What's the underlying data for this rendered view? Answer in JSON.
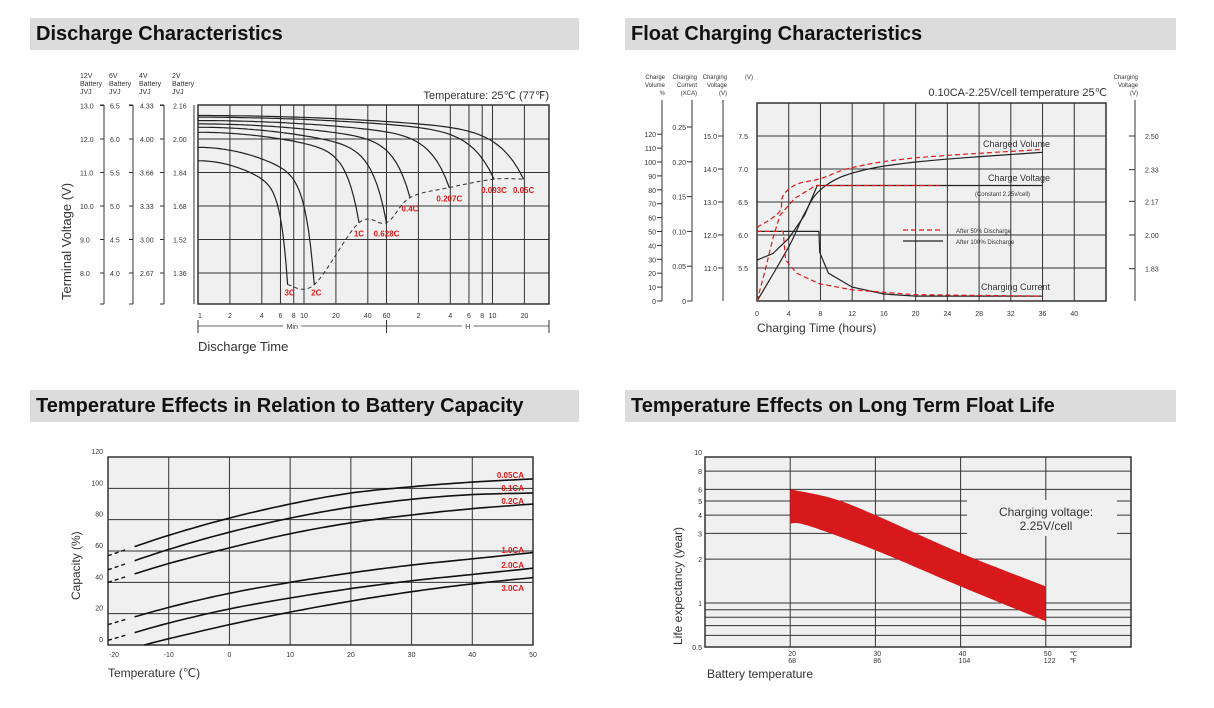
{
  "colors": {
    "grid_bg": "#f0f0f0",
    "grid_line": "#333333",
    "red": "#e01b1b",
    "band": "#d7191c",
    "header_bg": "#dcdcdc"
  },
  "chart_data": [
    {
      "type": "line",
      "title": "Discharge Characteristics",
      "annotation": "Temperature: 25℃ (77℉)",
      "xlabel": "Discharge Time",
      "ylabel": "Terminal Voltage (V)",
      "x_scale": "log",
      "x_groups": [
        {
          "label": "Min",
          "ticks": [
            "1",
            "2",
            "4",
            "6",
            "8",
            "10",
            "20",
            "40",
            "60"
          ],
          "minutes": [
            1,
            2,
            4,
            6,
            8,
            10,
            20,
            40,
            60
          ]
        },
        {
          "label": "H",
          "ticks": [
            "2",
            "4",
            "6",
            "8",
            "10",
            "20"
          ],
          "minutes": [
            120,
            240,
            360,
            480,
            600,
            1200
          ]
        }
      ],
      "voltage_axes": [
        {
          "header": [
            "12V",
            "Battery",
            "JVJ"
          ],
          "ticks": [
            "13.0",
            "12.0",
            "11.0",
            "10.0",
            "9.0",
            "8.0"
          ]
        },
        {
          "header": [
            "6V",
            "Battery",
            "JVJ"
          ],
          "ticks": [
            "6.5",
            "6.0",
            "5.5",
            "5.0",
            "4.5",
            "4.0"
          ]
        },
        {
          "header": [
            "4V",
            "Battery",
            "JVJ"
          ],
          "ticks": [
            "4.33",
            "4.00",
            "3.66",
            "3.33",
            "3.00",
            "2.67"
          ]
        },
        {
          "header": [
            "2V",
            "Battery",
            " JVJ"
          ],
          "ticks": [
            "2.16",
            "2.00",
            "1.84",
            "1.68",
            "1.52",
            "1.36"
          ]
        }
      ],
      "y_ticks_12v": [
        13,
        12,
        11,
        10,
        9,
        8
      ],
      "series": [
        {
          "name": "3C",
          "start_v": 11.5,
          "end_min": 7,
          "end_v": 7.8
        },
        {
          "name": "2C",
          "start_v": 11.9,
          "end_min": 12.5,
          "end_v": 7.8
        },
        {
          "name": "1C",
          "start_v": 12.35,
          "end_min": 33,
          "end_v": 9.65
        },
        {
          "name": "0.628C",
          "start_v": 12.5,
          "end_min": 60,
          "end_v": 9.65
        },
        {
          "name": "0.4C",
          "start_v": 12.6,
          "end_min": 100,
          "end_v": 10.4
        },
        {
          "name": "0.207C",
          "start_v": 12.7,
          "end_min": 235,
          "end_v": 10.7
        },
        {
          "name": "0.093C",
          "start_v": 12.8,
          "end_min": 620,
          "end_v": 10.95
        },
        {
          "name": "0.05C",
          "start_v": 12.85,
          "end_min": 1180,
          "end_v": 10.95
        }
      ],
      "cutoff_line": "dashed"
    },
    {
      "type": "line",
      "title": "Float Charging Characteristics",
      "annotation": "0.10CA-2.25V/cell  temperature 25℃",
      "xlabel": "Charging Time (hours)",
      "xlim": [
        0,
        44
      ],
      "x_ticks": [
        0,
        4,
        8,
        12,
        16,
        20,
        24,
        28,
        32,
        36,
        40
      ],
      "axes": {
        "charge_volume": {
          "header": [
            "Charge",
            "Volume",
            "%"
          ],
          "ticks": [
            0,
            10,
            20,
            30,
            40,
            50,
            60,
            70,
            80,
            90,
            100,
            110,
            120
          ]
        },
        "charging_current": {
          "header": [
            "Charging",
            "Current",
            "(XCA)"
          ],
          "ticks": [
            "0",
            "0.05",
            "0.10",
            "0.15",
            "0.20",
            "0.25"
          ]
        },
        "charging_voltage_12v": {
          "header": [
            "Charging",
            "Voltage",
            "(V)"
          ],
          "ticks": [
            "11.0",
            "12.0",
            "13.0",
            "14.0",
            "15.0"
          ]
        },
        "charging_voltage_6v": {
          "header": [
            "(V)"
          ],
          "ticks": [
            "5.5",
            "6.0",
            "6.5",
            "7.0",
            "7.5"
          ]
        },
        "charging_voltage_cell": {
          "header": [
            "Charging",
            "Voltage",
            "(V)"
          ],
          "ticks": [
            "1.83",
            "2.00",
            "2.17",
            "2.33",
            "2.50"
          ]
        }
      },
      "labels": {
        "charged_volume": "Charged Volume",
        "charge_voltage": "Charge Voltage",
        "charge_voltage_note": "(Constant 2.25v/cell)",
        "charging_current": "Charging Current"
      },
      "legend": [
        {
          "name": "After  50% Discharge",
          "style": "dashed-red"
        },
        {
          "name": "After 100% Discharge",
          "style": "solid-black"
        }
      ],
      "series": [
        {
          "legend": 1,
          "quantity": "charged_volume_pct",
          "points": [
            [
              0,
              0
            ],
            [
              4,
              39
            ],
            [
              6,
              63
            ],
            [
              8,
              80
            ],
            [
              12,
              92
            ],
            [
              20,
              100
            ],
            [
              36,
              107
            ]
          ]
        },
        {
          "legend": 1,
          "quantity": "charge_voltage_6v",
          "points": [
            [
              0,
              5.62
            ],
            [
              2,
              5.72
            ],
            [
              4,
              5.95
            ],
            [
              6,
              6.3
            ],
            [
              7.6,
              6.75
            ],
            [
              36,
              6.75
            ]
          ]
        },
        {
          "legend": 1,
          "quantity": "charging_current_ca",
          "points": [
            [
              0,
              0.1
            ],
            [
              7.8,
              0.1
            ],
            [
              7.9,
              0.07
            ],
            [
              9,
              0.04
            ],
            [
              12,
              0.02
            ],
            [
              16,
              0.01
            ],
            [
              20,
              0.007
            ],
            [
              36,
              0.007
            ]
          ]
        },
        {
          "legend": 0,
          "quantity": "charged_volume_pct",
          "points": [
            [
              0,
              53
            ],
            [
              2,
              60
            ],
            [
              3,
              66
            ],
            [
              3.3,
              76
            ],
            [
              5,
              84
            ],
            [
              8,
              88
            ],
            [
              12,
              96
            ],
            [
              20,
              103
            ],
            [
              36,
              109
            ]
          ]
        },
        {
          "legend": 0,
          "quantity": "charge_voltage_6v",
          "points": [
            [
              0,
              5.0
            ],
            [
              1,
              5.45
            ],
            [
              2,
              5.95
            ],
            [
              2.9,
              6.3
            ],
            [
              4.7,
              6.55
            ],
            [
              7.4,
              6.75
            ],
            [
              23,
              6.75
            ]
          ]
        },
        {
          "legend": 0,
          "quantity": "charging_current_ca",
          "points": [
            [
              0,
              0.1
            ],
            [
              3.3,
              0.1
            ],
            [
              3.6,
              0.059
            ],
            [
              5,
              0.04
            ],
            [
              7.8,
              0.025
            ],
            [
              12,
              0.016
            ],
            [
              20,
              0.009
            ],
            [
              36,
              0.007
            ]
          ]
        }
      ]
    },
    {
      "type": "line",
      "title": "Temperature Effects in Relation to Battery Capacity",
      "xlabel": "Temperature (℃)",
      "ylabel": "Capacity (%)",
      "xlim": [
        -20,
        50
      ],
      "ylim": [
        0,
        120
      ],
      "x_ticks": [
        -20,
        -10,
        0,
        10,
        20,
        30,
        40,
        50
      ],
      "y_ticks": [
        0,
        20,
        40,
        60,
        80,
        100,
        120
      ],
      "grid": true,
      "x": [
        -20,
        -10,
        0,
        10,
        20,
        30,
        40,
        50
      ],
      "series": [
        {
          "name": "0.05CA",
          "values": [
            57,
            70,
            81,
            90,
            97,
            101,
            104,
            106
          ],
          "dashed_until": -16
        },
        {
          "name": "0.1CA",
          "values": [
            48,
            61,
            72,
            81,
            88,
            93,
            96,
            97
          ],
          "dashed_until": -16
        },
        {
          "name": "0.2CA",
          "values": [
            40,
            52,
            62,
            71,
            78,
            83,
            87,
            90
          ],
          "dashed_until": -16
        },
        {
          "name": "1.0CA",
          "values": [
            13,
            24,
            33,
            40,
            46,
            51,
            55,
            59
          ],
          "dashed_until": -16
        },
        {
          "name": "2.0CA",
          "values": [
            3,
            14,
            23,
            30,
            36,
            41,
            45,
            49
          ],
          "dashed_until": -16
        },
        {
          "name": "3.0CA",
          "values": [
            null,
            4,
            13,
            21,
            28,
            34,
            39,
            43
          ],
          "starts_at": [
            -14,
            0
          ]
        }
      ]
    },
    {
      "type": "area",
      "title": "Temperature Effects on Long Term Float Life",
      "xlabel": "Battery temperature",
      "ylabel": "Life expectancy (year)",
      "y_scale": "log",
      "ylim": [
        0.5,
        10
      ],
      "xlim": [
        10,
        60
      ],
      "y_ticks": [
        "0.5",
        "1",
        "2",
        "3",
        "4",
        "5",
        "6",
        "8",
        "10"
      ],
      "x_ticks": [
        {
          "c": "20",
          "f": "68"
        },
        {
          "c": "30",
          "f": "86"
        },
        {
          "c": "40",
          "f": "104"
        },
        {
          "c": "50",
          "f": "122"
        }
      ],
      "x_units": {
        "c": "℃",
        "f": "℉"
      },
      "annotation": [
        "Charging voltage:",
        "2.25V/cell"
      ],
      "band": {
        "upper": [
          [
            20,
            6
          ],
          [
            25,
            5.2
          ],
          [
            30,
            4.0
          ],
          [
            40,
            2.2
          ],
          [
            50,
            1.3
          ]
        ],
        "lower": [
          [
            20,
            3.5
          ],
          [
            22,
            3.4
          ],
          [
            30,
            2.3
          ],
          [
            40,
            1.3
          ],
          [
            50,
            0.75
          ]
        ]
      }
    }
  ]
}
